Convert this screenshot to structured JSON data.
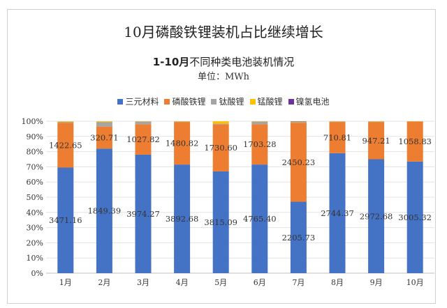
{
  "chart_data": {
    "type": "bar",
    "stacked": "percent",
    "title": "10月磷酸铁锂装机占比继续增长",
    "subtitle_bold": "1-10月",
    "subtitle_rest": "不同种类电池装机情况",
    "unit": "单位：MWh",
    "categories": [
      "1月",
      "2月",
      "3月",
      "4月",
      "5月",
      "6月",
      "7月",
      "8月",
      "9月",
      "10月"
    ],
    "y_ticks": [
      "0%",
      "10%",
      "20%",
      "30%",
      "40%",
      "50%",
      "60%",
      "70%",
      "80%",
      "90%",
      "100%"
    ],
    "ylim": [
      0,
      100
    ],
    "legend_position": "top",
    "series": [
      {
        "name": "三元材料",
        "color": "#4472c4",
        "share": [
          69.5,
          82.0,
          78.0,
          71.5,
          67.0,
          71.5,
          47.0,
          79.0,
          75.0,
          73.5
        ],
        "labels": [
          "3471.16",
          "1849.39",
          "3974.27",
          "3892.68",
          "3815.09",
          "4765.40",
          "2205.73",
          "2744.37",
          "2972.68",
          "3005.32"
        ]
      },
      {
        "name": "磷酸铁锂",
        "color": "#ed7d31",
        "share": [
          29.5,
          14.5,
          20.0,
          28.0,
          31.0,
          26.5,
          52.0,
          20.5,
          24.5,
          26.3
        ],
        "labels": [
          "1422.65",
          "320.71",
          "1027.82",
          "1480.82",
          "1730.60",
          "1703.28",
          "2450.23",
          "710.81",
          "947.21",
          "1058.83"
        ]
      },
      {
        "name": "钛酸锂",
        "color": "#a5a5a5",
        "share": [
          0.6,
          3.0,
          1.8,
          0.3,
          0.5,
          1.8,
          0.5,
          0.3,
          0.3,
          0.1
        ],
        "labels": []
      },
      {
        "name": "锰酸锂",
        "color": "#ffc000",
        "share": [
          0.4,
          0.5,
          0.2,
          0.2,
          1.5,
          0.2,
          0.3,
          0.2,
          0.2,
          0.1
        ],
        "labels": []
      },
      {
        "name": "镍氢电池",
        "color": "#7030a0",
        "share": [
          0.0,
          0.0,
          0.0,
          0.0,
          0.0,
          0.0,
          0.2,
          0.0,
          0.0,
          0.0
        ],
        "labels": []
      }
    ]
  }
}
